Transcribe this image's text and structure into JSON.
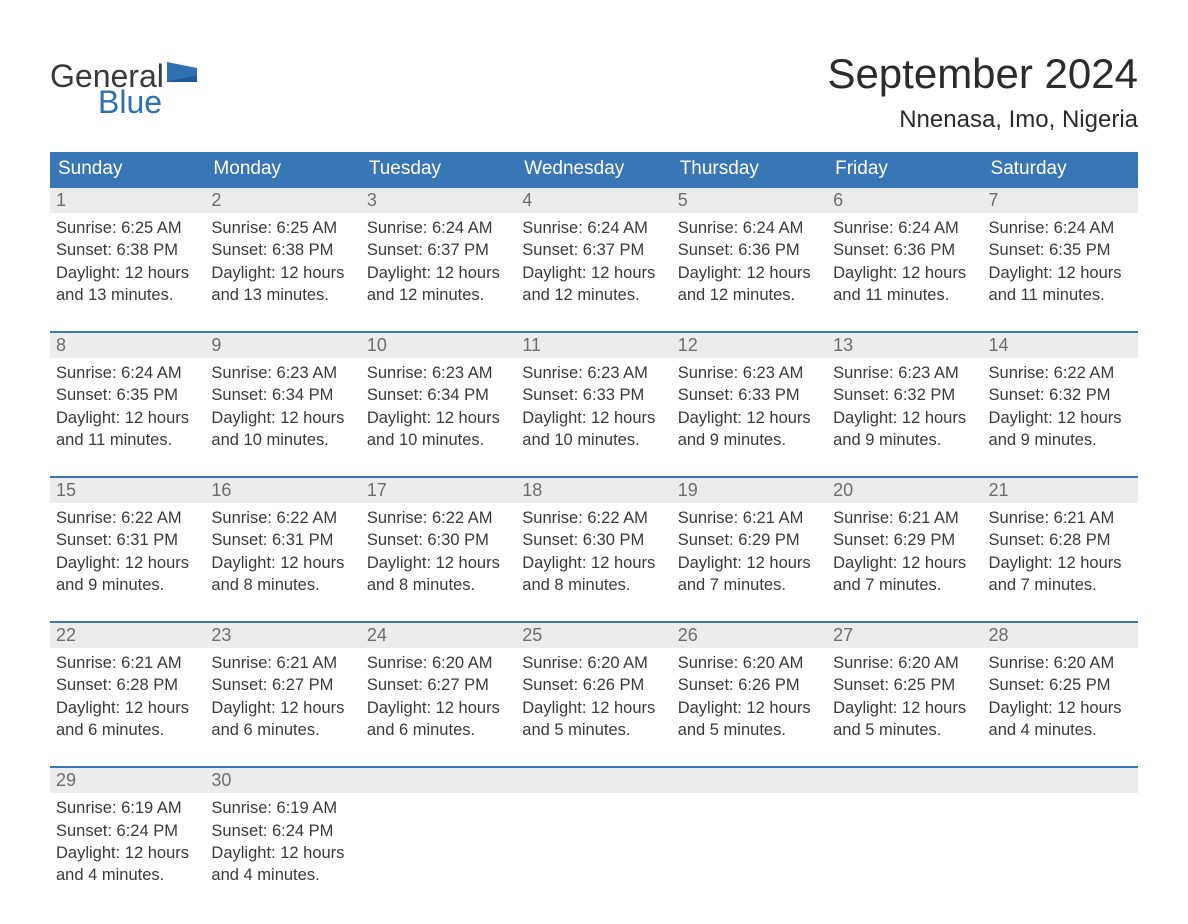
{
  "logo": {
    "text_top": "General",
    "text_bottom": "Blue",
    "color_top": "#3a3a3a",
    "color_bottom": "#2f70b3",
    "flag_color": "#2f70b3"
  },
  "title": {
    "month": "September 2024",
    "location": "Nnenasa, Imo, Nigeria",
    "month_fontsize": 42,
    "location_fontsize": 24,
    "color": "#2b2b2b"
  },
  "calendar": {
    "header_bg": "#3876b5",
    "header_fg": "#ffffff",
    "daynum_bg": "#ececec",
    "daynum_fg": "#6d6d6d",
    "row_border_color": "#3876b5",
    "body_fg": "#3a3a3a",
    "background": "#ffffff",
    "day_headers": [
      "Sunday",
      "Monday",
      "Tuesday",
      "Wednesday",
      "Thursday",
      "Friday",
      "Saturday"
    ],
    "weeks": [
      [
        {
          "num": "1",
          "sunrise": "Sunrise: 6:25 AM",
          "sunset": "Sunset: 6:38 PM",
          "daylight1": "Daylight: 12 hours",
          "daylight2": "and 13 minutes."
        },
        {
          "num": "2",
          "sunrise": "Sunrise: 6:25 AM",
          "sunset": "Sunset: 6:38 PM",
          "daylight1": "Daylight: 12 hours",
          "daylight2": "and 13 minutes."
        },
        {
          "num": "3",
          "sunrise": "Sunrise: 6:24 AM",
          "sunset": "Sunset: 6:37 PM",
          "daylight1": "Daylight: 12 hours",
          "daylight2": "and 12 minutes."
        },
        {
          "num": "4",
          "sunrise": "Sunrise: 6:24 AM",
          "sunset": "Sunset: 6:37 PM",
          "daylight1": "Daylight: 12 hours",
          "daylight2": "and 12 minutes."
        },
        {
          "num": "5",
          "sunrise": "Sunrise: 6:24 AM",
          "sunset": "Sunset: 6:36 PM",
          "daylight1": "Daylight: 12 hours",
          "daylight2": "and 12 minutes."
        },
        {
          "num": "6",
          "sunrise": "Sunrise: 6:24 AM",
          "sunset": "Sunset: 6:36 PM",
          "daylight1": "Daylight: 12 hours",
          "daylight2": "and 11 minutes."
        },
        {
          "num": "7",
          "sunrise": "Sunrise: 6:24 AM",
          "sunset": "Sunset: 6:35 PM",
          "daylight1": "Daylight: 12 hours",
          "daylight2": "and 11 minutes."
        }
      ],
      [
        {
          "num": "8",
          "sunrise": "Sunrise: 6:24 AM",
          "sunset": "Sunset: 6:35 PM",
          "daylight1": "Daylight: 12 hours",
          "daylight2": "and 11 minutes."
        },
        {
          "num": "9",
          "sunrise": "Sunrise: 6:23 AM",
          "sunset": "Sunset: 6:34 PM",
          "daylight1": "Daylight: 12 hours",
          "daylight2": "and 10 minutes."
        },
        {
          "num": "10",
          "sunrise": "Sunrise: 6:23 AM",
          "sunset": "Sunset: 6:34 PM",
          "daylight1": "Daylight: 12 hours",
          "daylight2": "and 10 minutes."
        },
        {
          "num": "11",
          "sunrise": "Sunrise: 6:23 AM",
          "sunset": "Sunset: 6:33 PM",
          "daylight1": "Daylight: 12 hours",
          "daylight2": "and 10 minutes."
        },
        {
          "num": "12",
          "sunrise": "Sunrise: 6:23 AM",
          "sunset": "Sunset: 6:33 PM",
          "daylight1": "Daylight: 12 hours",
          "daylight2": "and 9 minutes."
        },
        {
          "num": "13",
          "sunrise": "Sunrise: 6:23 AM",
          "sunset": "Sunset: 6:32 PM",
          "daylight1": "Daylight: 12 hours",
          "daylight2": "and 9 minutes."
        },
        {
          "num": "14",
          "sunrise": "Sunrise: 6:22 AM",
          "sunset": "Sunset: 6:32 PM",
          "daylight1": "Daylight: 12 hours",
          "daylight2": "and 9 minutes."
        }
      ],
      [
        {
          "num": "15",
          "sunrise": "Sunrise: 6:22 AM",
          "sunset": "Sunset: 6:31 PM",
          "daylight1": "Daylight: 12 hours",
          "daylight2": "and 9 minutes."
        },
        {
          "num": "16",
          "sunrise": "Sunrise: 6:22 AM",
          "sunset": "Sunset: 6:31 PM",
          "daylight1": "Daylight: 12 hours",
          "daylight2": "and 8 minutes."
        },
        {
          "num": "17",
          "sunrise": "Sunrise: 6:22 AM",
          "sunset": "Sunset: 6:30 PM",
          "daylight1": "Daylight: 12 hours",
          "daylight2": "and 8 minutes."
        },
        {
          "num": "18",
          "sunrise": "Sunrise: 6:22 AM",
          "sunset": "Sunset: 6:30 PM",
          "daylight1": "Daylight: 12 hours",
          "daylight2": "and 8 minutes."
        },
        {
          "num": "19",
          "sunrise": "Sunrise: 6:21 AM",
          "sunset": "Sunset: 6:29 PM",
          "daylight1": "Daylight: 12 hours",
          "daylight2": "and 7 minutes."
        },
        {
          "num": "20",
          "sunrise": "Sunrise: 6:21 AM",
          "sunset": "Sunset: 6:29 PM",
          "daylight1": "Daylight: 12 hours",
          "daylight2": "and 7 minutes."
        },
        {
          "num": "21",
          "sunrise": "Sunrise: 6:21 AM",
          "sunset": "Sunset: 6:28 PM",
          "daylight1": "Daylight: 12 hours",
          "daylight2": "and 7 minutes."
        }
      ],
      [
        {
          "num": "22",
          "sunrise": "Sunrise: 6:21 AM",
          "sunset": "Sunset: 6:28 PM",
          "daylight1": "Daylight: 12 hours",
          "daylight2": "and 6 minutes."
        },
        {
          "num": "23",
          "sunrise": "Sunrise: 6:21 AM",
          "sunset": "Sunset: 6:27 PM",
          "daylight1": "Daylight: 12 hours",
          "daylight2": "and 6 minutes."
        },
        {
          "num": "24",
          "sunrise": "Sunrise: 6:20 AM",
          "sunset": "Sunset: 6:27 PM",
          "daylight1": "Daylight: 12 hours",
          "daylight2": "and 6 minutes."
        },
        {
          "num": "25",
          "sunrise": "Sunrise: 6:20 AM",
          "sunset": "Sunset: 6:26 PM",
          "daylight1": "Daylight: 12 hours",
          "daylight2": "and 5 minutes."
        },
        {
          "num": "26",
          "sunrise": "Sunrise: 6:20 AM",
          "sunset": "Sunset: 6:26 PM",
          "daylight1": "Daylight: 12 hours",
          "daylight2": "and 5 minutes."
        },
        {
          "num": "27",
          "sunrise": "Sunrise: 6:20 AM",
          "sunset": "Sunset: 6:25 PM",
          "daylight1": "Daylight: 12 hours",
          "daylight2": "and 5 minutes."
        },
        {
          "num": "28",
          "sunrise": "Sunrise: 6:20 AM",
          "sunset": "Sunset: 6:25 PM",
          "daylight1": "Daylight: 12 hours",
          "daylight2": "and 4 minutes."
        }
      ],
      [
        {
          "num": "29",
          "sunrise": "Sunrise: 6:19 AM",
          "sunset": "Sunset: 6:24 PM",
          "daylight1": "Daylight: 12 hours",
          "daylight2": "and 4 minutes."
        },
        {
          "num": "30",
          "sunrise": "Sunrise: 6:19 AM",
          "sunset": "Sunset: 6:24 PM",
          "daylight1": "Daylight: 12 hours",
          "daylight2": "and 4 minutes."
        },
        null,
        null,
        null,
        null,
        null
      ]
    ]
  }
}
